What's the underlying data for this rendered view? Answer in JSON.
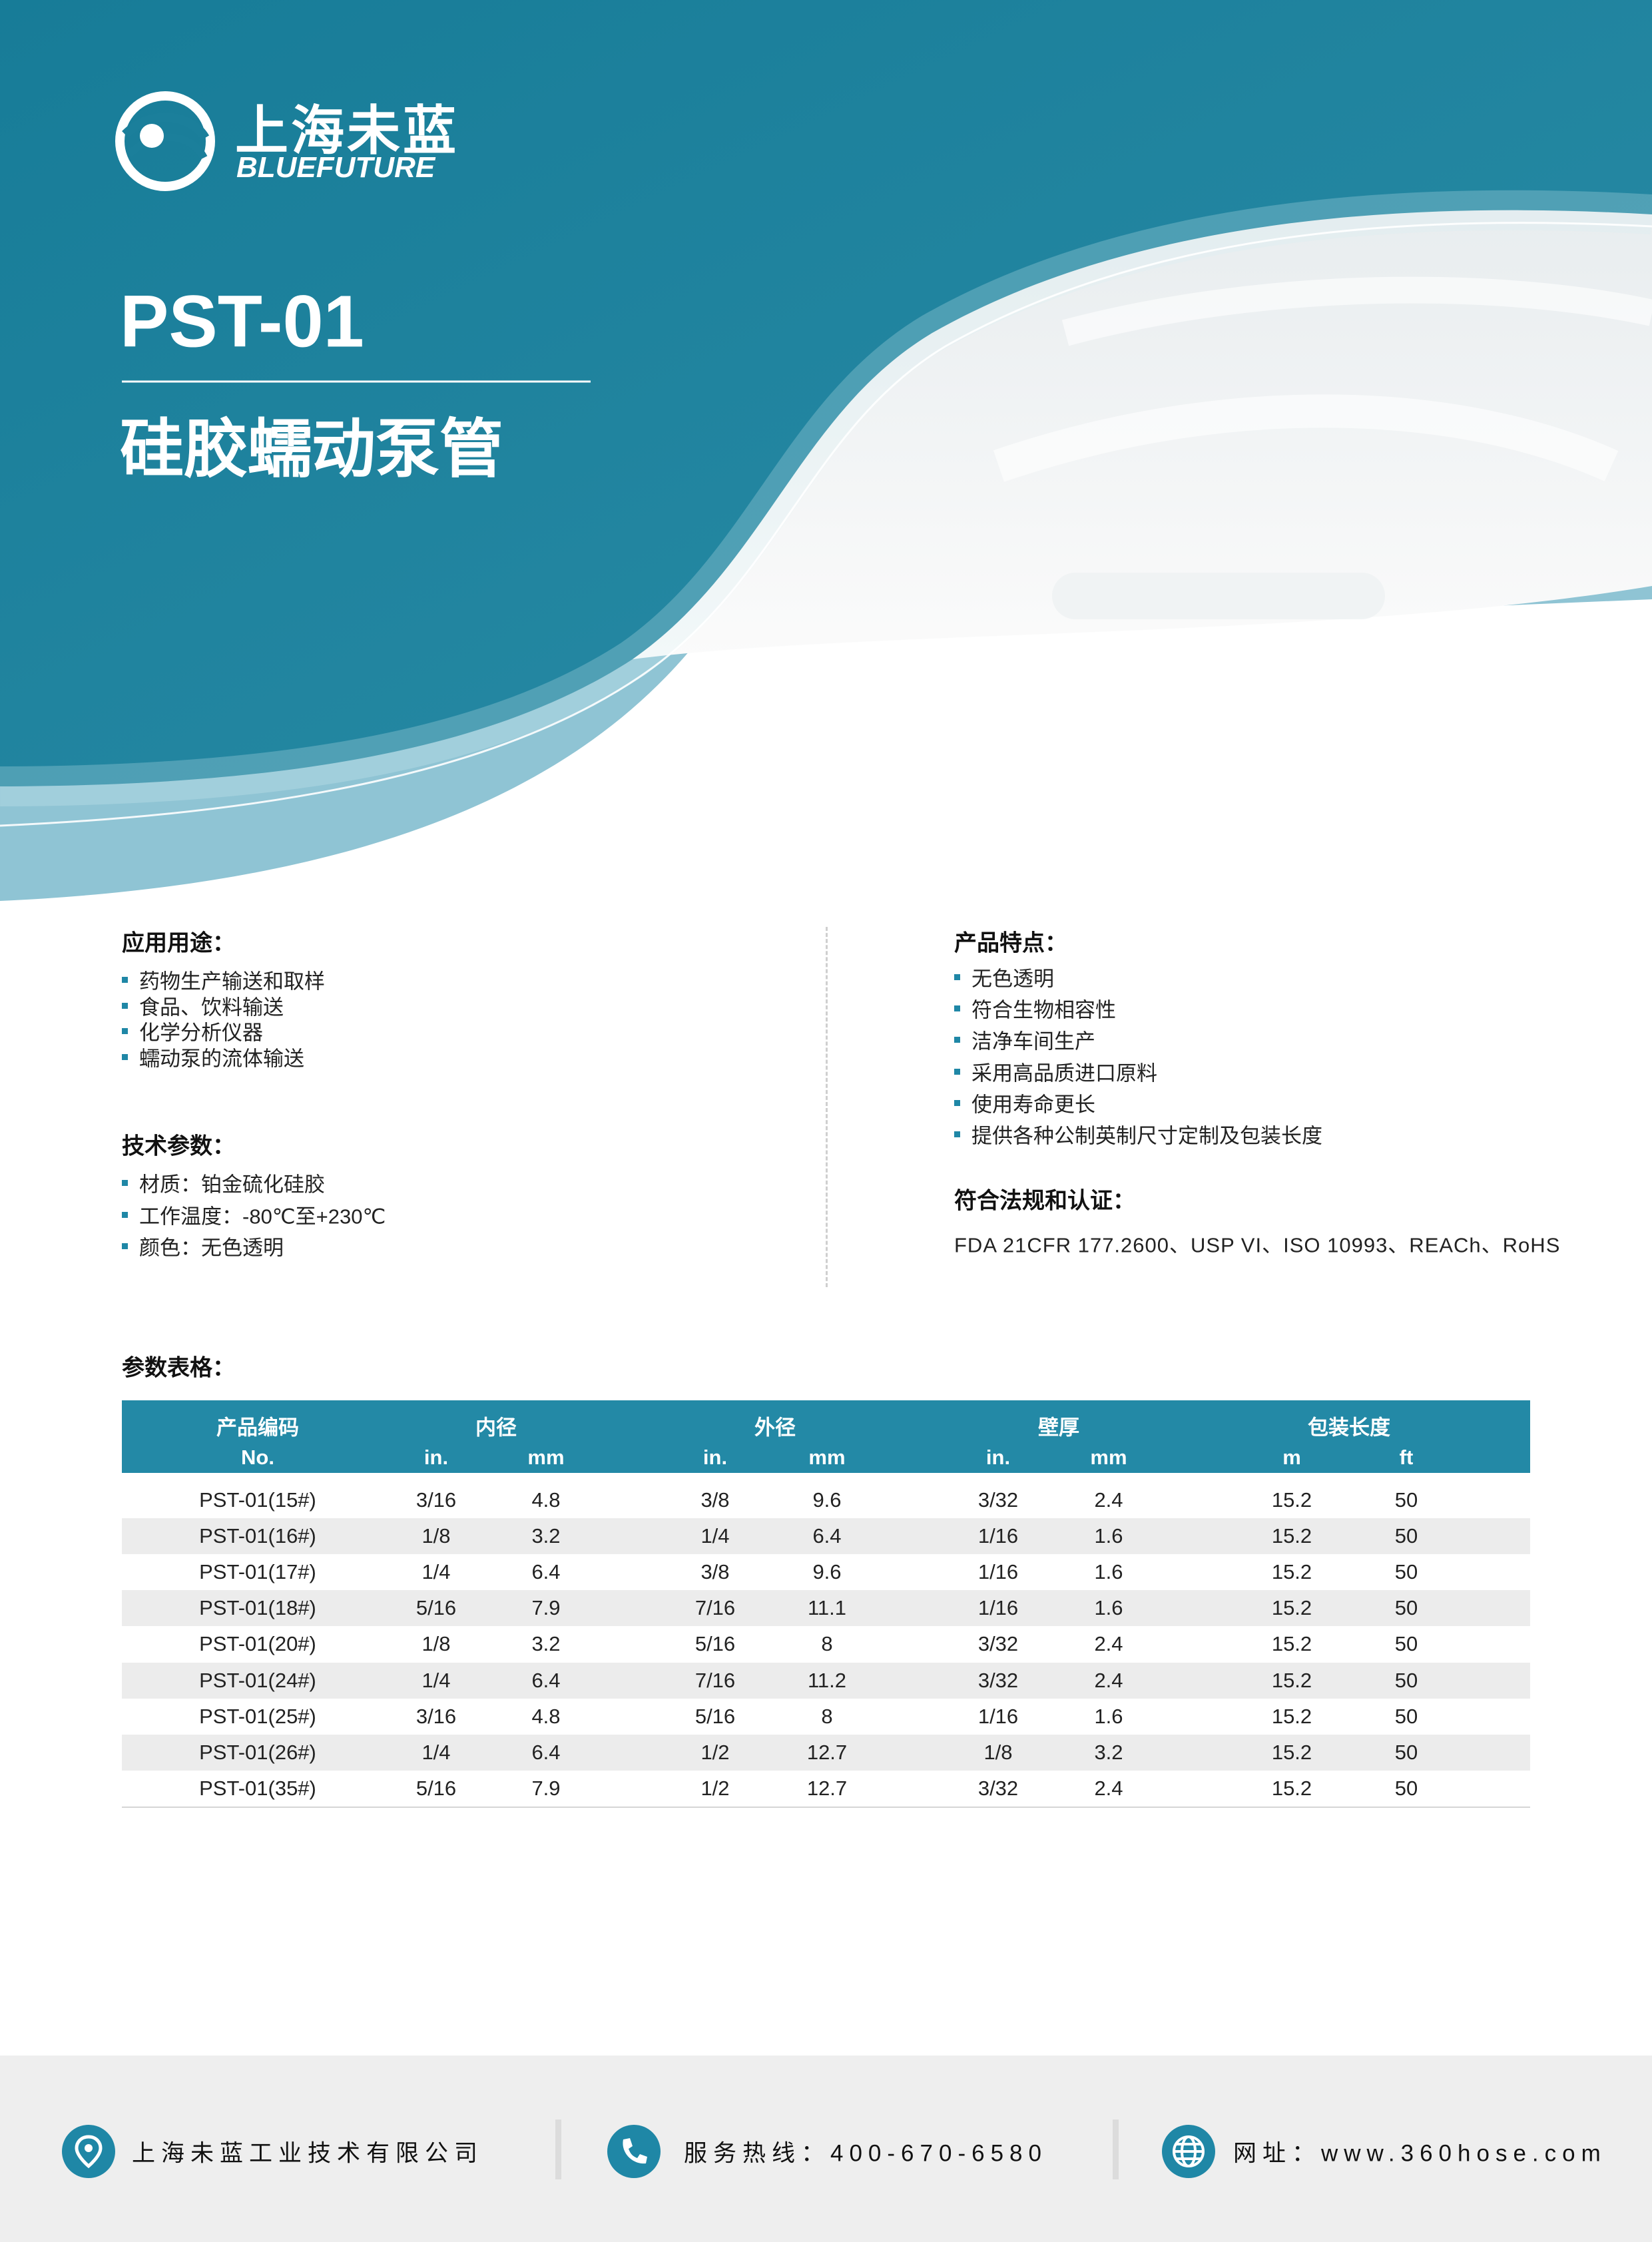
{
  "header": {
    "logo_cn": "上海未蓝",
    "logo_en": "BLUEFUTURE",
    "title": "PST-01",
    "subtitle": "硅胶蠕动泵管"
  },
  "applications": {
    "heading": "应用用途：",
    "items": [
      "药物生产输送和取样",
      "食品、饮料输送",
      "化学分析仪器",
      "蠕动泵的流体输送"
    ]
  },
  "specs": {
    "heading": "技术参数：",
    "items": [
      "材质：铂金硫化硅胶",
      "工作温度：-80℃至+230℃",
      "颜色：无色透明"
    ]
  },
  "features": {
    "heading": "产品特点：",
    "items": [
      "无色透明",
      "符合生物相容性",
      "洁净车间生产",
      "采用高品质进口原料",
      "使用寿命更长",
      "提供各种公制英制尺寸定制及包装长度"
    ]
  },
  "compliance": {
    "heading": "符合法规和认证：",
    "text": "FDA 21CFR 177.2600、USP VI、ISO 10993、REACh、RoHS"
  },
  "table": {
    "heading": "参数表格：",
    "groups": [
      "产品编码",
      "内径",
      "外径",
      "壁厚",
      "包装长度"
    ],
    "subheaders": [
      "No.",
      "in.",
      "mm",
      "in.",
      "mm",
      "in.",
      "mm",
      "m",
      "ft"
    ],
    "rows": [
      [
        "PST-01(15#)",
        "3/16",
        4.8,
        "3/8",
        9.6,
        "3/32",
        2.4,
        15.2,
        50
      ],
      [
        "PST-01(16#)",
        "1/8",
        3.2,
        "1/4",
        6.4,
        "1/16",
        1.6,
        15.2,
        50
      ],
      [
        "PST-01(17#)",
        "1/4",
        6.4,
        "3/8",
        9.6,
        "1/16",
        1.6,
        15.2,
        50
      ],
      [
        "PST-01(18#)",
        "5/16",
        7.9,
        "7/16",
        11.1,
        "1/16",
        1.6,
        15.2,
        50
      ],
      [
        "PST-01(20#)",
        "1/8",
        3.2,
        "5/16",
        8,
        "3/32",
        2.4,
        15.2,
        50
      ],
      [
        "PST-01(24#)",
        "1/4",
        6.4,
        "7/16",
        11.2,
        "3/32",
        2.4,
        15.2,
        50
      ],
      [
        "PST-01(25#)",
        "3/16",
        4.8,
        "5/16",
        8,
        "1/16",
        1.6,
        15.2,
        50
      ],
      [
        "PST-01(26#)",
        "1/4",
        6.4,
        "1/2",
        12.7,
        "1/8",
        3.2,
        15.2,
        50
      ],
      [
        "PST-01(35#)",
        "5/16",
        7.9,
        "1/2",
        12.7,
        "3/32",
        2.4,
        15.2,
        50
      ]
    ]
  },
  "footer": {
    "company": "上海未蓝工业技术有限公司",
    "hotline": "服务热线：400-670-6580",
    "website": "网址：www.360hose.com"
  }
}
